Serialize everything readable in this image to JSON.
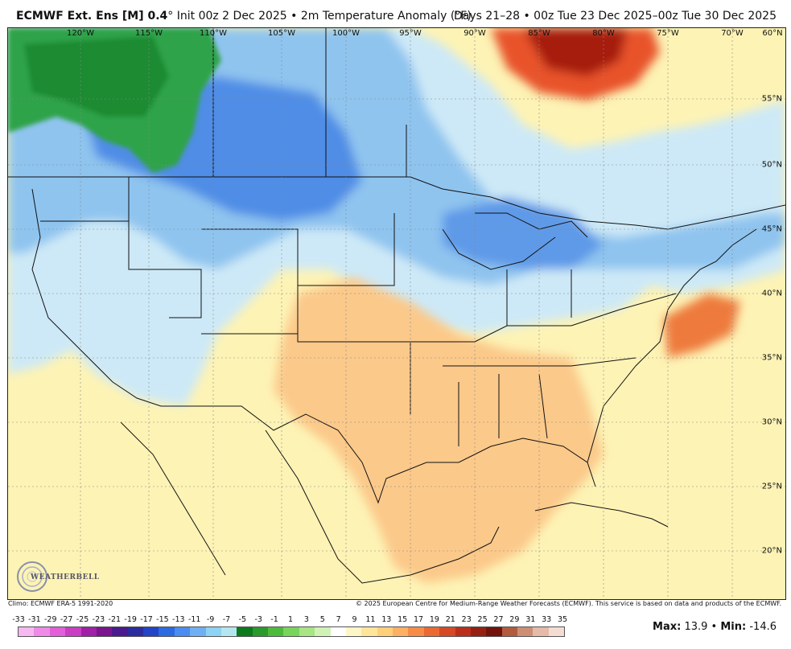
{
  "header": {
    "model": "ECMWF Ext. Ens [M] 0.4",
    "init_text": "° Init 00z 2 Dec 2025 • 2m Temperature Anomaly (°F)",
    "valid_text": "Days 21–28 • 00z Tue 23 Dec 2025–00z Tue 30 Dec 2025"
  },
  "map": {
    "longitude_labels": [
      "120°W",
      "115°W",
      "110°W",
      "105°W",
      "100°W",
      "95°W",
      "90°W",
      "85°W",
      "80°W",
      "75°W",
      "70°W",
      "60°N"
    ],
    "latitude_labels": [
      "55°N",
      "50°N",
      "45°N",
      "40°N",
      "35°N",
      "30°N",
      "25°N",
      "20°N"
    ]
  },
  "branding": {
    "logo_text": "WEATHERBELL"
  },
  "footer": {
    "climo": "Climo: ECMWF ERA-5 1991-2020",
    "copyright": "© 2025 European Centre for Medium-Range Weather Forecasts (ECMWF). This service is based on data and products of the ECMWF."
  },
  "legend": {
    "labels": [
      "-33",
      "-31",
      "-29",
      "-27",
      "-25",
      "-23",
      "-21",
      "-19",
      "-17",
      "-15",
      "-13",
      "-11",
      "-9",
      "-7",
      "-5",
      "-3",
      "-1",
      "1",
      "3",
      "5",
      "7",
      "9",
      "11",
      "13",
      "15",
      "17",
      "19",
      "21",
      "23",
      "25",
      "27",
      "29",
      "31",
      "33",
      "35"
    ],
    "colors": [
      "#f5b8f0",
      "#ee8ae8",
      "#e25fd9",
      "#c93ec3",
      "#a020a8",
      "#7a148f",
      "#4b1a8e",
      "#2c2c9e",
      "#2444c8",
      "#2c6ae0",
      "#4a8cf0",
      "#6fb0f4",
      "#8ed3f4",
      "#b5e6f0",
      "#0d7a1e",
      "#2a9a2a",
      "#4eba3c",
      "#78d45a",
      "#a7e585",
      "#d0f2b7",
      "#ffffff",
      "#fff6c8",
      "#ffe59a",
      "#ffcf7a",
      "#fdb064",
      "#f68c48",
      "#ea6a34",
      "#d64926",
      "#b8301b",
      "#962013",
      "#72130c",
      "#b25b3f",
      "#ce8e74",
      "#e5baa8",
      "#f4dcd2"
    ]
  },
  "stats": {
    "max_label": "Max:",
    "max_value": "13.9",
    "min_label": "Min:",
    "min_value": "-14.6"
  },
  "colors": {
    "warm_light": "#fdf3b5",
    "warm_mid": "#fbc98a",
    "warm_strong": "#e8532c",
    "warm_extreme": "#a61a0d",
    "cool_light": "#cde9f7",
    "cool_mid": "#8fc4ef",
    "cool_strong": "#4f8de6",
    "green_anomaly": "#2fa34a"
  }
}
